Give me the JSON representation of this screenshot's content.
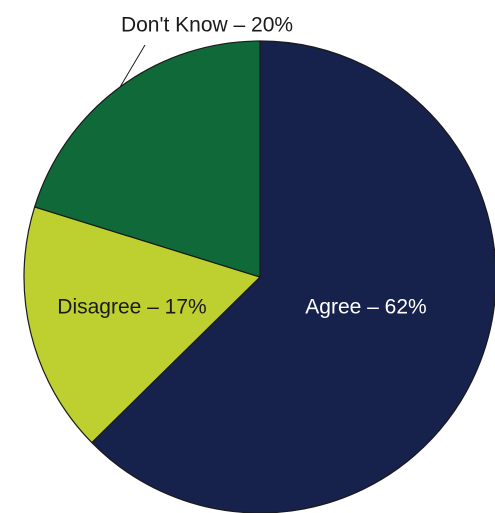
{
  "chart_data": {
    "type": "pie",
    "title": "",
    "start": "12 o'clock",
    "direction": "clockwise",
    "slices": [
      {
        "label": "Agree",
        "value": 62,
        "display": "Agree – 62%",
        "color": "#16214c",
        "label_color": "#ffffff",
        "label_position": "inside"
      },
      {
        "label": "Disagree",
        "value": 17,
        "display": "Disagree – 17%",
        "color": "#bdd030",
        "label_color": "#1a1a1a",
        "label_position": "inside"
      },
      {
        "label": "Don't Know",
        "value": 20,
        "display": "Don't Know – 20%",
        "color": "#0f6938",
        "label_color": "#1a1a1a",
        "label_position": "outside"
      }
    ]
  }
}
